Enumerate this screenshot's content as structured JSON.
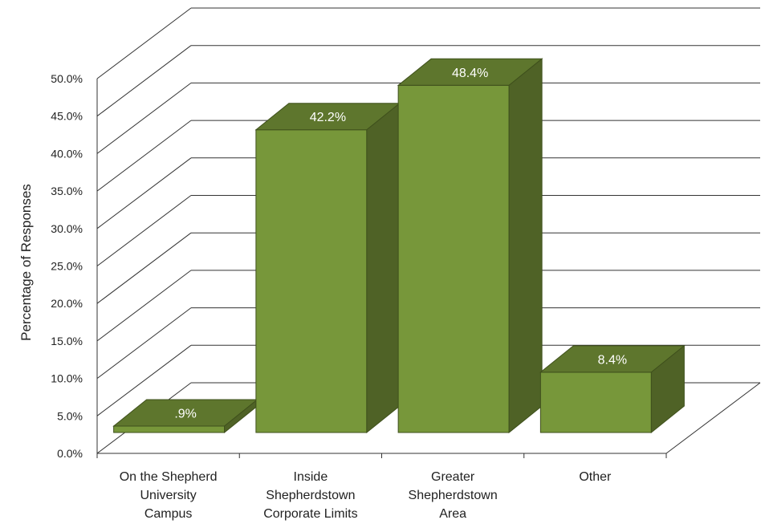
{
  "chart_data": {
    "type": "bar",
    "title": "",
    "xlabel": "",
    "ylabel": "Percentage of Responses",
    "categories": [
      [
        "On the Shepherd",
        "University",
        "Campus"
      ],
      [
        "Inside",
        "Shepherdstown",
        "Corporate Limits"
      ],
      [
        "Greater",
        "Shepherdstown",
        "Area"
      ],
      [
        "Other"
      ]
    ],
    "values": [
      0.9,
      42.2,
      48.4,
      8.4
    ],
    "value_labels": [
      ".9%",
      "42.2%",
      "48.4%",
      "8.4%"
    ],
    "ylim": [
      0,
      50
    ],
    "yticks": [
      "0.0%",
      "5.0%",
      "10.0%",
      "15.0%",
      "20.0%",
      "25.0%",
      "30.0%",
      "35.0%",
      "40.0%",
      "45.0%",
      "50.0%"
    ],
    "grid": true,
    "legend": "none",
    "three_d": true,
    "colors": {
      "front": "#77973a",
      "side": "#4f6226",
      "top": "#5e762d",
      "edge": "#3f501c",
      "grid": "#333333"
    }
  }
}
